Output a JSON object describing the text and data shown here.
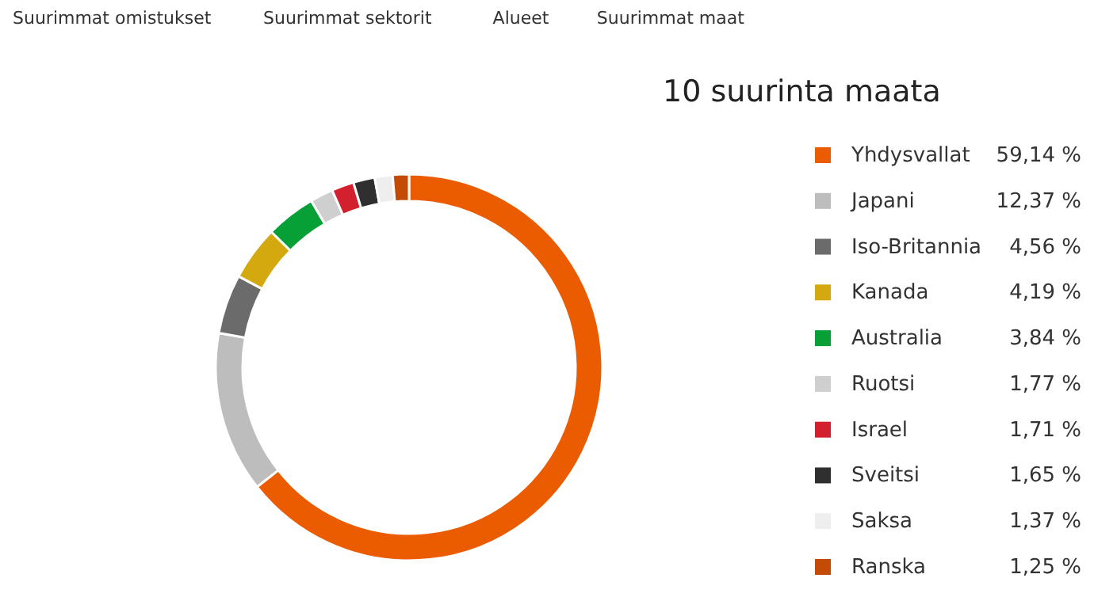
{
  "chart_data": {
    "type": "donut",
    "title": "10 suurinta maata",
    "categories": [
      "Yhdysvallat",
      "Japani",
      "Iso-Britannia",
      "Kanada",
      "Australia",
      "Ruotsi",
      "Israel",
      "Sveitsi",
      "Saksa",
      "Ranska"
    ],
    "values": [
      59.14,
      12.37,
      4.56,
      4.19,
      3.84,
      1.77,
      1.71,
      1.65,
      1.37,
      1.25
    ],
    "colors": [
      "#eb5b00",
      "#bdbdbd",
      "#6b6b6b",
      "#d4a80f",
      "#07a037",
      "#cfcfcf",
      "#d3202e",
      "#2f2f2f",
      "#eeeeee",
      "#c34b05"
    ],
    "value_labels": [
      "59,14 %",
      "12,37 %",
      "4,56 %",
      "4,19 %",
      "3,84 %",
      "1,77 %",
      "1,71 %",
      "1,65 %",
      "1,37 %",
      "1,25 %"
    ],
    "legend": "right",
    "annotations": [
      "Suurimmat omistukset",
      "Suurimmat sektorit",
      "Alueet",
      "Suurimmat maat"
    ]
  }
}
